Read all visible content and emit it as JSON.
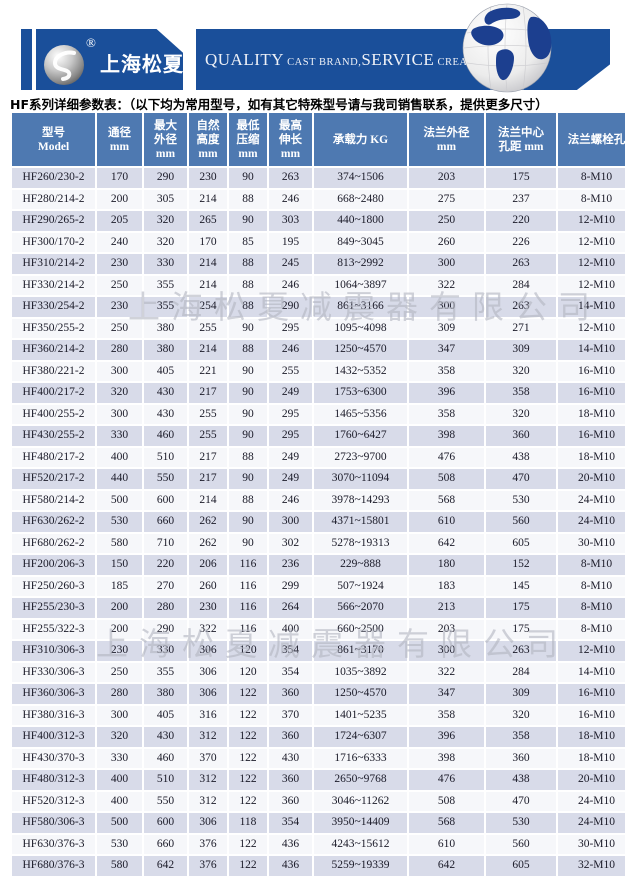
{
  "brand": {
    "logo_text": "上海松夏",
    "registered_mark": "®",
    "slogan": {
      "big1": "QUALITY",
      "small1": " CAST BRAND,",
      "big2": "SERVICE",
      "small2": " CREAT VALUE"
    }
  },
  "intro": "HF系列详细参数表：（以下均为常用型号，如有其它特殊型号请与我司销售联系，提供更多尺寸）",
  "watermark": "上海松夏减震器有限公司",
  "colors": {
    "banner_blue": "#1a4f9a",
    "header_blue": "#4e79b1",
    "row_alt": "#d8dbe9",
    "row_base": "#f6f7fa",
    "watermark_gray": "#b4b7c2"
  },
  "table": {
    "headers": [
      [
        "型号",
        "Model"
      ],
      [
        "通径",
        "mm"
      ],
      [
        "最大",
        "外径",
        "mm"
      ],
      [
        "自然",
        "高度",
        "mm"
      ],
      [
        "最低",
        "压缩",
        "mm"
      ],
      [
        "最高",
        "伸长",
        "mm"
      ],
      [
        "承载力 KG"
      ],
      [
        "法兰外径",
        "mm"
      ],
      [
        "法兰中心",
        "孔距 mm"
      ],
      [
        "法兰螺栓孔"
      ]
    ],
    "rows": [
      [
        "HF260/230-2",
        "170",
        "290",
        "230",
        "90",
        "263",
        "374~1506",
        "203",
        "175",
        "8-M10"
      ],
      [
        "HF280/214-2",
        "200",
        "305",
        "214",
        "88",
        "246",
        "668~2480",
        "275",
        "237",
        "8-M10"
      ],
      [
        "HF290/265-2",
        "205",
        "320",
        "265",
        "90",
        "303",
        "440~1800",
        "250",
        "220",
        "12-M10"
      ],
      [
        "HF300/170-2",
        "240",
        "320",
        "170",
        "85",
        "195",
        "849~3045",
        "260",
        "226",
        "12-M10"
      ],
      [
        "HF310/214-2",
        "230",
        "330",
        "214",
        "88",
        "245",
        "813~2992",
        "300",
        "263",
        "12-M10"
      ],
      [
        "HF330/214-2",
        "250",
        "355",
        "214",
        "88",
        "246",
        "1064~3897",
        "322",
        "284",
        "12-M10"
      ],
      [
        "HF330/254-2",
        "230",
        "355",
        "254",
        "88",
        "290",
        "861~3166",
        "300",
        "263",
        "14-M10"
      ],
      [
        "HF350/255-2",
        "250",
        "380",
        "255",
        "90",
        "295",
        "1095~4098",
        "309",
        "271",
        "12-M10"
      ],
      [
        "HF360/214-2",
        "280",
        "380",
        "214",
        "88",
        "246",
        "1250~4570",
        "347",
        "309",
        "14-M10"
      ],
      [
        "HF380/221-2",
        "300",
        "405",
        "221",
        "90",
        "255",
        "1432~5352",
        "358",
        "320",
        "16-M10"
      ],
      [
        "HF400/217-2",
        "320",
        "430",
        "217",
        "90",
        "249",
        "1753~6300",
        "396",
        "358",
        "16-M10"
      ],
      [
        "HF400/255-2",
        "300",
        "430",
        "255",
        "90",
        "295",
        "1465~5356",
        "358",
        "320",
        "18-M10"
      ],
      [
        "HF430/255-2",
        "330",
        "460",
        "255",
        "90",
        "295",
        "1760~6427",
        "398",
        "360",
        "16-M10"
      ],
      [
        "HF480/217-2",
        "400",
        "510",
        "217",
        "88",
        "249",
        "2723~9700",
        "476",
        "438",
        "18-M10"
      ],
      [
        "HF520/217-2",
        "440",
        "550",
        "217",
        "90",
        "249",
        "3070~11094",
        "508",
        "470",
        "20-M10"
      ],
      [
        "HF580/214-2",
        "500",
        "600",
        "214",
        "88",
        "246",
        "3978~14293",
        "568",
        "530",
        "24-M10"
      ],
      [
        "HF630/262-2",
        "530",
        "660",
        "262",
        "90",
        "300",
        "4371~15801",
        "610",
        "560",
        "24-M10"
      ],
      [
        "HF680/262-2",
        "580",
        "710",
        "262",
        "90",
        "302",
        "5278~19313",
        "642",
        "605",
        "30-M10"
      ],
      [
        "HF200/206-3",
        "150",
        "220",
        "206",
        "116",
        "236",
        "229~888",
        "180",
        "152",
        "8-M10"
      ],
      [
        "HF250/260-3",
        "185",
        "270",
        "260",
        "116",
        "299",
        "507~1924",
        "183",
        "145",
        "8-M10"
      ],
      [
        "HF255/230-3",
        "200",
        "280",
        "230",
        "116",
        "264",
        "566~2070",
        "213",
        "175",
        "8-M10"
      ],
      [
        "HF255/322-3",
        "200",
        "290",
        "322",
        "116",
        "400",
        "660~2500",
        "203",
        "175",
        "8-M10"
      ],
      [
        "HF310/306-3",
        "230",
        "330",
        "306",
        "120",
        "354",
        "861~3170",
        "300",
        "263",
        "12-M10"
      ],
      [
        "HF330/306-3",
        "250",
        "355",
        "306",
        "120",
        "354",
        "1035~3892",
        "322",
        "284",
        "14-M10"
      ],
      [
        "HF360/306-3",
        "280",
        "380",
        "306",
        "122",
        "360",
        "1250~4570",
        "347",
        "309",
        "16-M10"
      ],
      [
        "HF380/316-3",
        "300",
        "405",
        "316",
        "122",
        "370",
        "1401~5235",
        "358",
        "320",
        "16-M10"
      ],
      [
        "HF400/312-3",
        "320",
        "430",
        "312",
        "122",
        "360",
        "1724~6307",
        "396",
        "358",
        "18-M10"
      ],
      [
        "HF430/370-3",
        "330",
        "460",
        "370",
        "122",
        "430",
        "1716~6333",
        "398",
        "360",
        "18-M10"
      ],
      [
        "HF480/312-3",
        "400",
        "510",
        "312",
        "122",
        "360",
        "2650~9768",
        "476",
        "438",
        "20-M10"
      ],
      [
        "HF520/312-3",
        "400",
        "550",
        "312",
        "122",
        "360",
        "3046~11262",
        "508",
        "470",
        "24-M10"
      ],
      [
        "HF580/306-3",
        "500",
        "600",
        "306",
        "118",
        "354",
        "3950~14409",
        "568",
        "530",
        "24-M10"
      ],
      [
        "HF630/376-3",
        "530",
        "660",
        "376",
        "122",
        "436",
        "4243~15612",
        "610",
        "560",
        "30-M10"
      ],
      [
        "HF680/376-3",
        "580",
        "642",
        "376",
        "122",
        "436",
        "5259~19339",
        "642",
        "605",
        "32-M10"
      ]
    ]
  }
}
